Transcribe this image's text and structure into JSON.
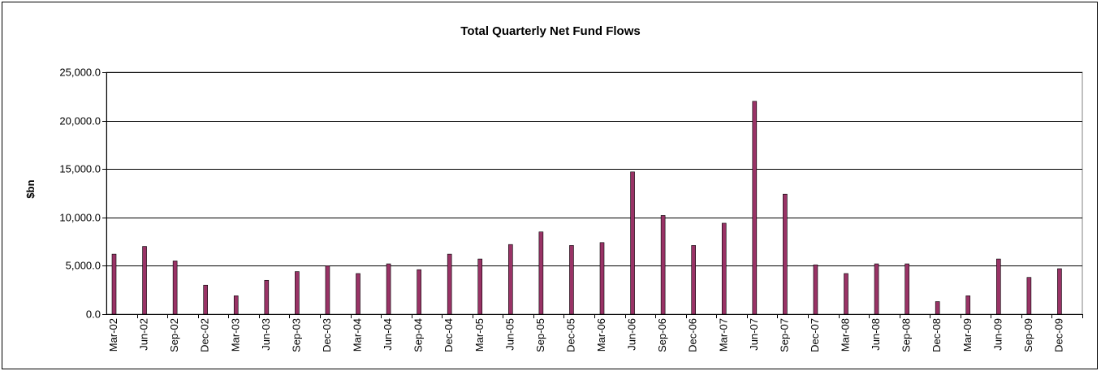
{
  "chart_data": {
    "type": "bar",
    "title": "Total Quarterly Net Fund Flows",
    "xlabel": "",
    "ylabel": "$bn",
    "ylim": [
      0,
      25000
    ],
    "yticks": [
      0,
      5000,
      10000,
      15000,
      20000,
      25000
    ],
    "ytick_labels": [
      "0.0",
      "5,000.0",
      "10,000.0",
      "15,000.0",
      "20,000.0",
      "25,000.0"
    ],
    "grid": true,
    "legend": "none",
    "bar_color": "#993366",
    "categories": [
      "Mar-02",
      "Jun-02",
      "Sep-02",
      "Dec-02",
      "Mar-03",
      "Jun-03",
      "Sep-03",
      "Dec-03",
      "Mar-04",
      "Jun-04",
      "Sep-04",
      "Dec-04",
      "Mar-05",
      "Jun-05",
      "Sep-05",
      "Dec-05",
      "Mar-06",
      "Jun-06",
      "Sep-06",
      "Dec-06",
      "Mar-07",
      "Jun-07",
      "Sep-07",
      "Dec-07",
      "Mar-08",
      "Jun-08",
      "Sep-08",
      "Dec-08",
      "Mar-09",
      "Jun-09",
      "Sep-09",
      "Dec-09"
    ],
    "values": [
      6200,
      7000,
      5500,
      3000,
      1900,
      3500,
      4400,
      5000,
      4200,
      5200,
      4600,
      6200,
      5700,
      7200,
      8500,
      7100,
      7400,
      14700,
      10200,
      7100,
      9400,
      22000,
      12400,
      5100,
      4200,
      5200,
      5200,
      1300,
      1900,
      5700,
      3800,
      4700
    ]
  }
}
